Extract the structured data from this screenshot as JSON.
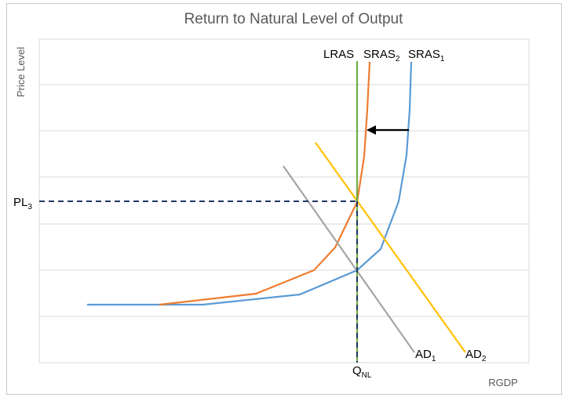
{
  "chart_data": {
    "type": "line",
    "title": "Return to Natural Level of Output",
    "xlabel": "RGDP",
    "ylabel": "Price Level",
    "grid": true,
    "curve_labels": {
      "lras": "LRAS",
      "sras2_main": "SRAS",
      "sras2_sub": "2",
      "sras1_main": "SRAS",
      "sras1_sub": "1",
      "ad1_main": "AD",
      "ad1_sub": "1",
      "ad2_main": "AD",
      "ad2_sub": "2",
      "pl3_main": "PL",
      "pl3_sub": "3",
      "qnl_main": "Q",
      "qnl_sub": "NL"
    },
    "colors": {
      "lras": "#70ad47",
      "sras1": "#5b9bd5",
      "sras2": "#ed7d31",
      "ad1": "#a5a5a5",
      "ad2": "#ffc000",
      "guide": "#1f3864",
      "arrow": "#000000"
    }
  }
}
